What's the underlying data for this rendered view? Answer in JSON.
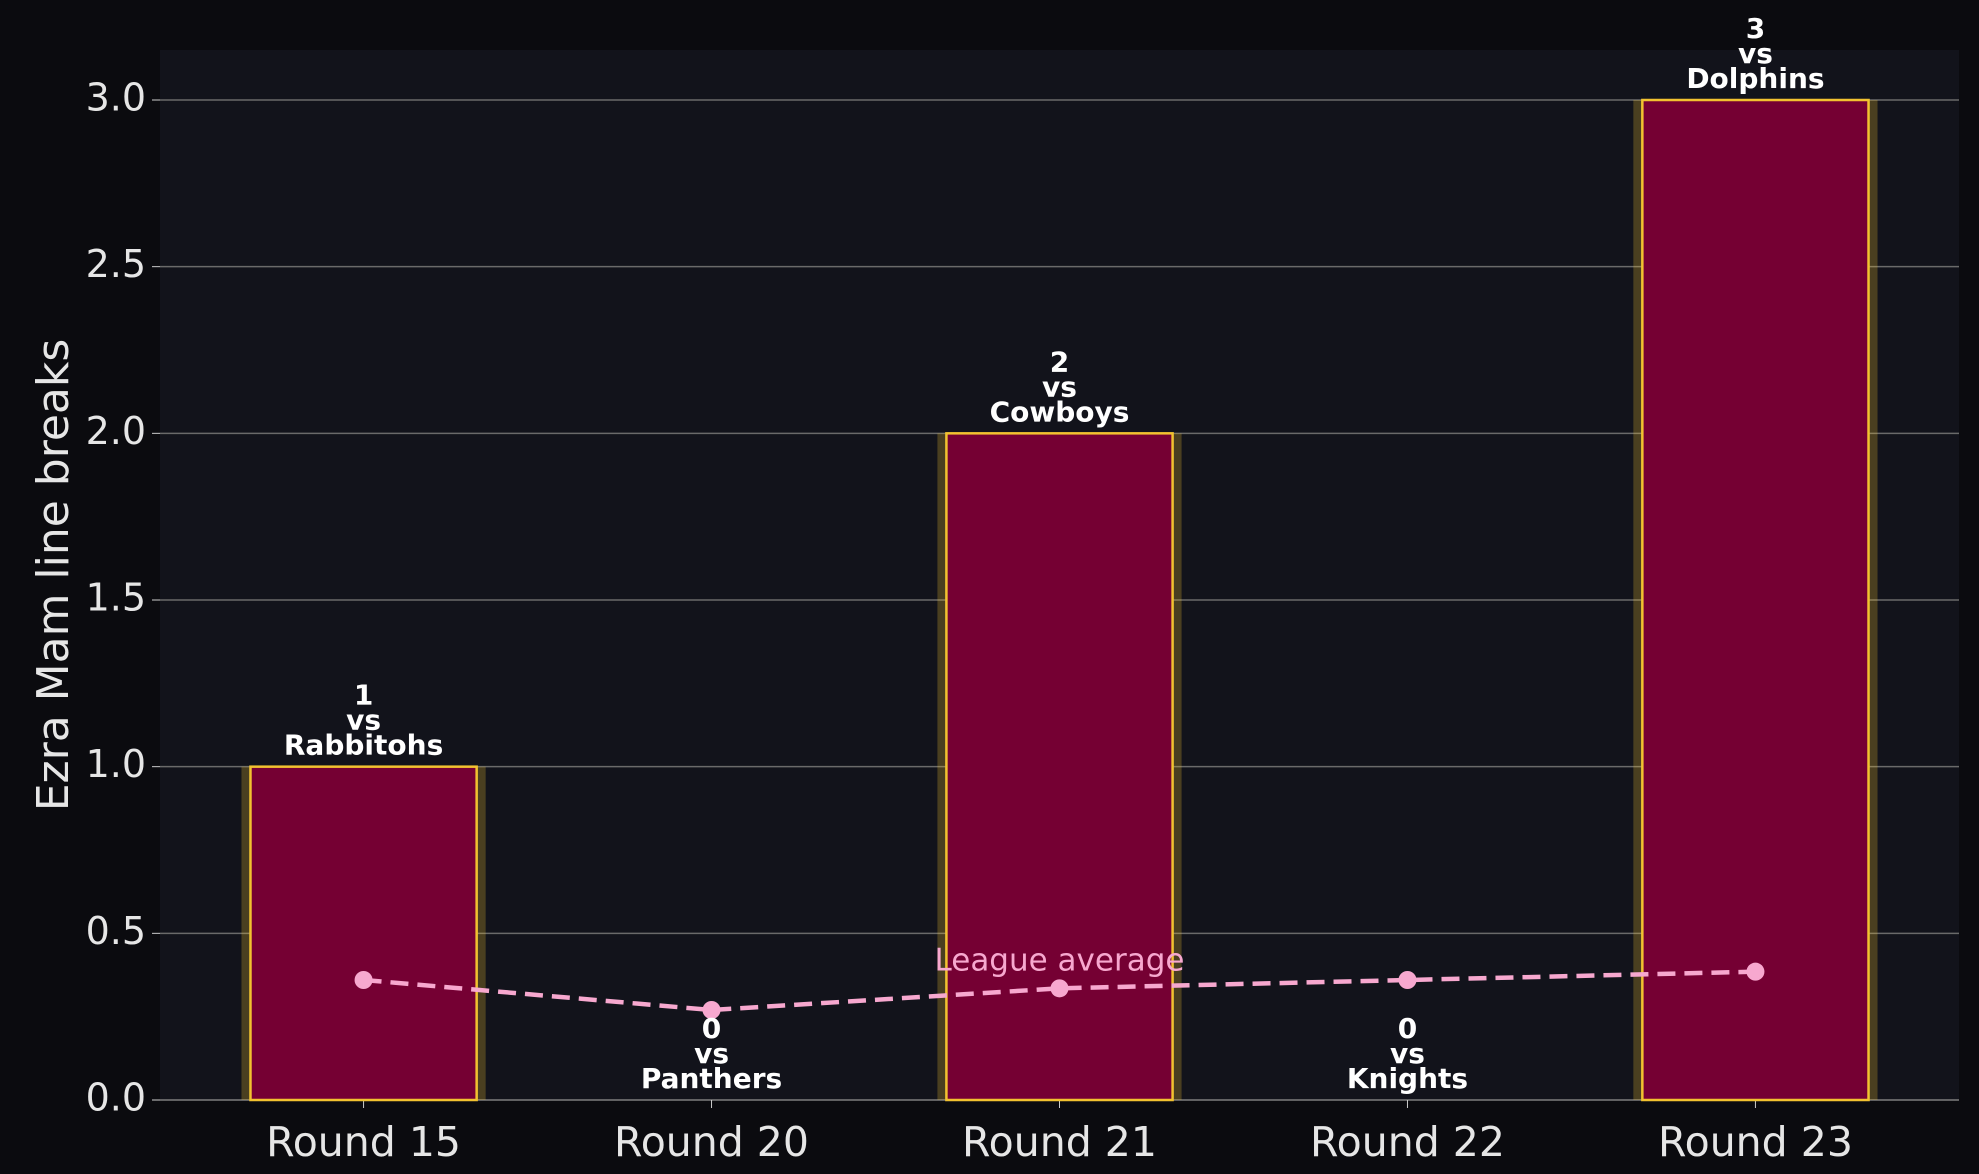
{
  "chart_data": {
    "type": "bar",
    "ylabel": "Ezra Mam line breaks",
    "categories": [
      "Round 15",
      "Round 20",
      "Round 21",
      "Round 22",
      "Round 23"
    ],
    "values": [
      1,
      0,
      2,
      0,
      3
    ],
    "opponents": [
      "Rabbitohs",
      "Panthers",
      "Cowboys",
      "Knights",
      "Dolphins"
    ],
    "vs_text": "vs",
    "color": "#750033",
    "edgecolor": "#f2c230",
    "line": {
      "label": "League average",
      "values": [
        0.36,
        0.27,
        0.335,
        0.36,
        0.385
      ],
      "color": "#f7a8cf"
    },
    "ylim": [
      0,
      3.15
    ],
    "yticks": [
      {
        "value": 0,
        "label": "0.0"
      },
      0.5,
      {
        "value": 1,
        "label": "1.0"
      },
      1.5,
      {
        "value": 2,
        "label": "2.0"
      },
      2.5,
      {
        "value": 3,
        "label": "3.0"
      }
    ],
    "grid": true
  }
}
